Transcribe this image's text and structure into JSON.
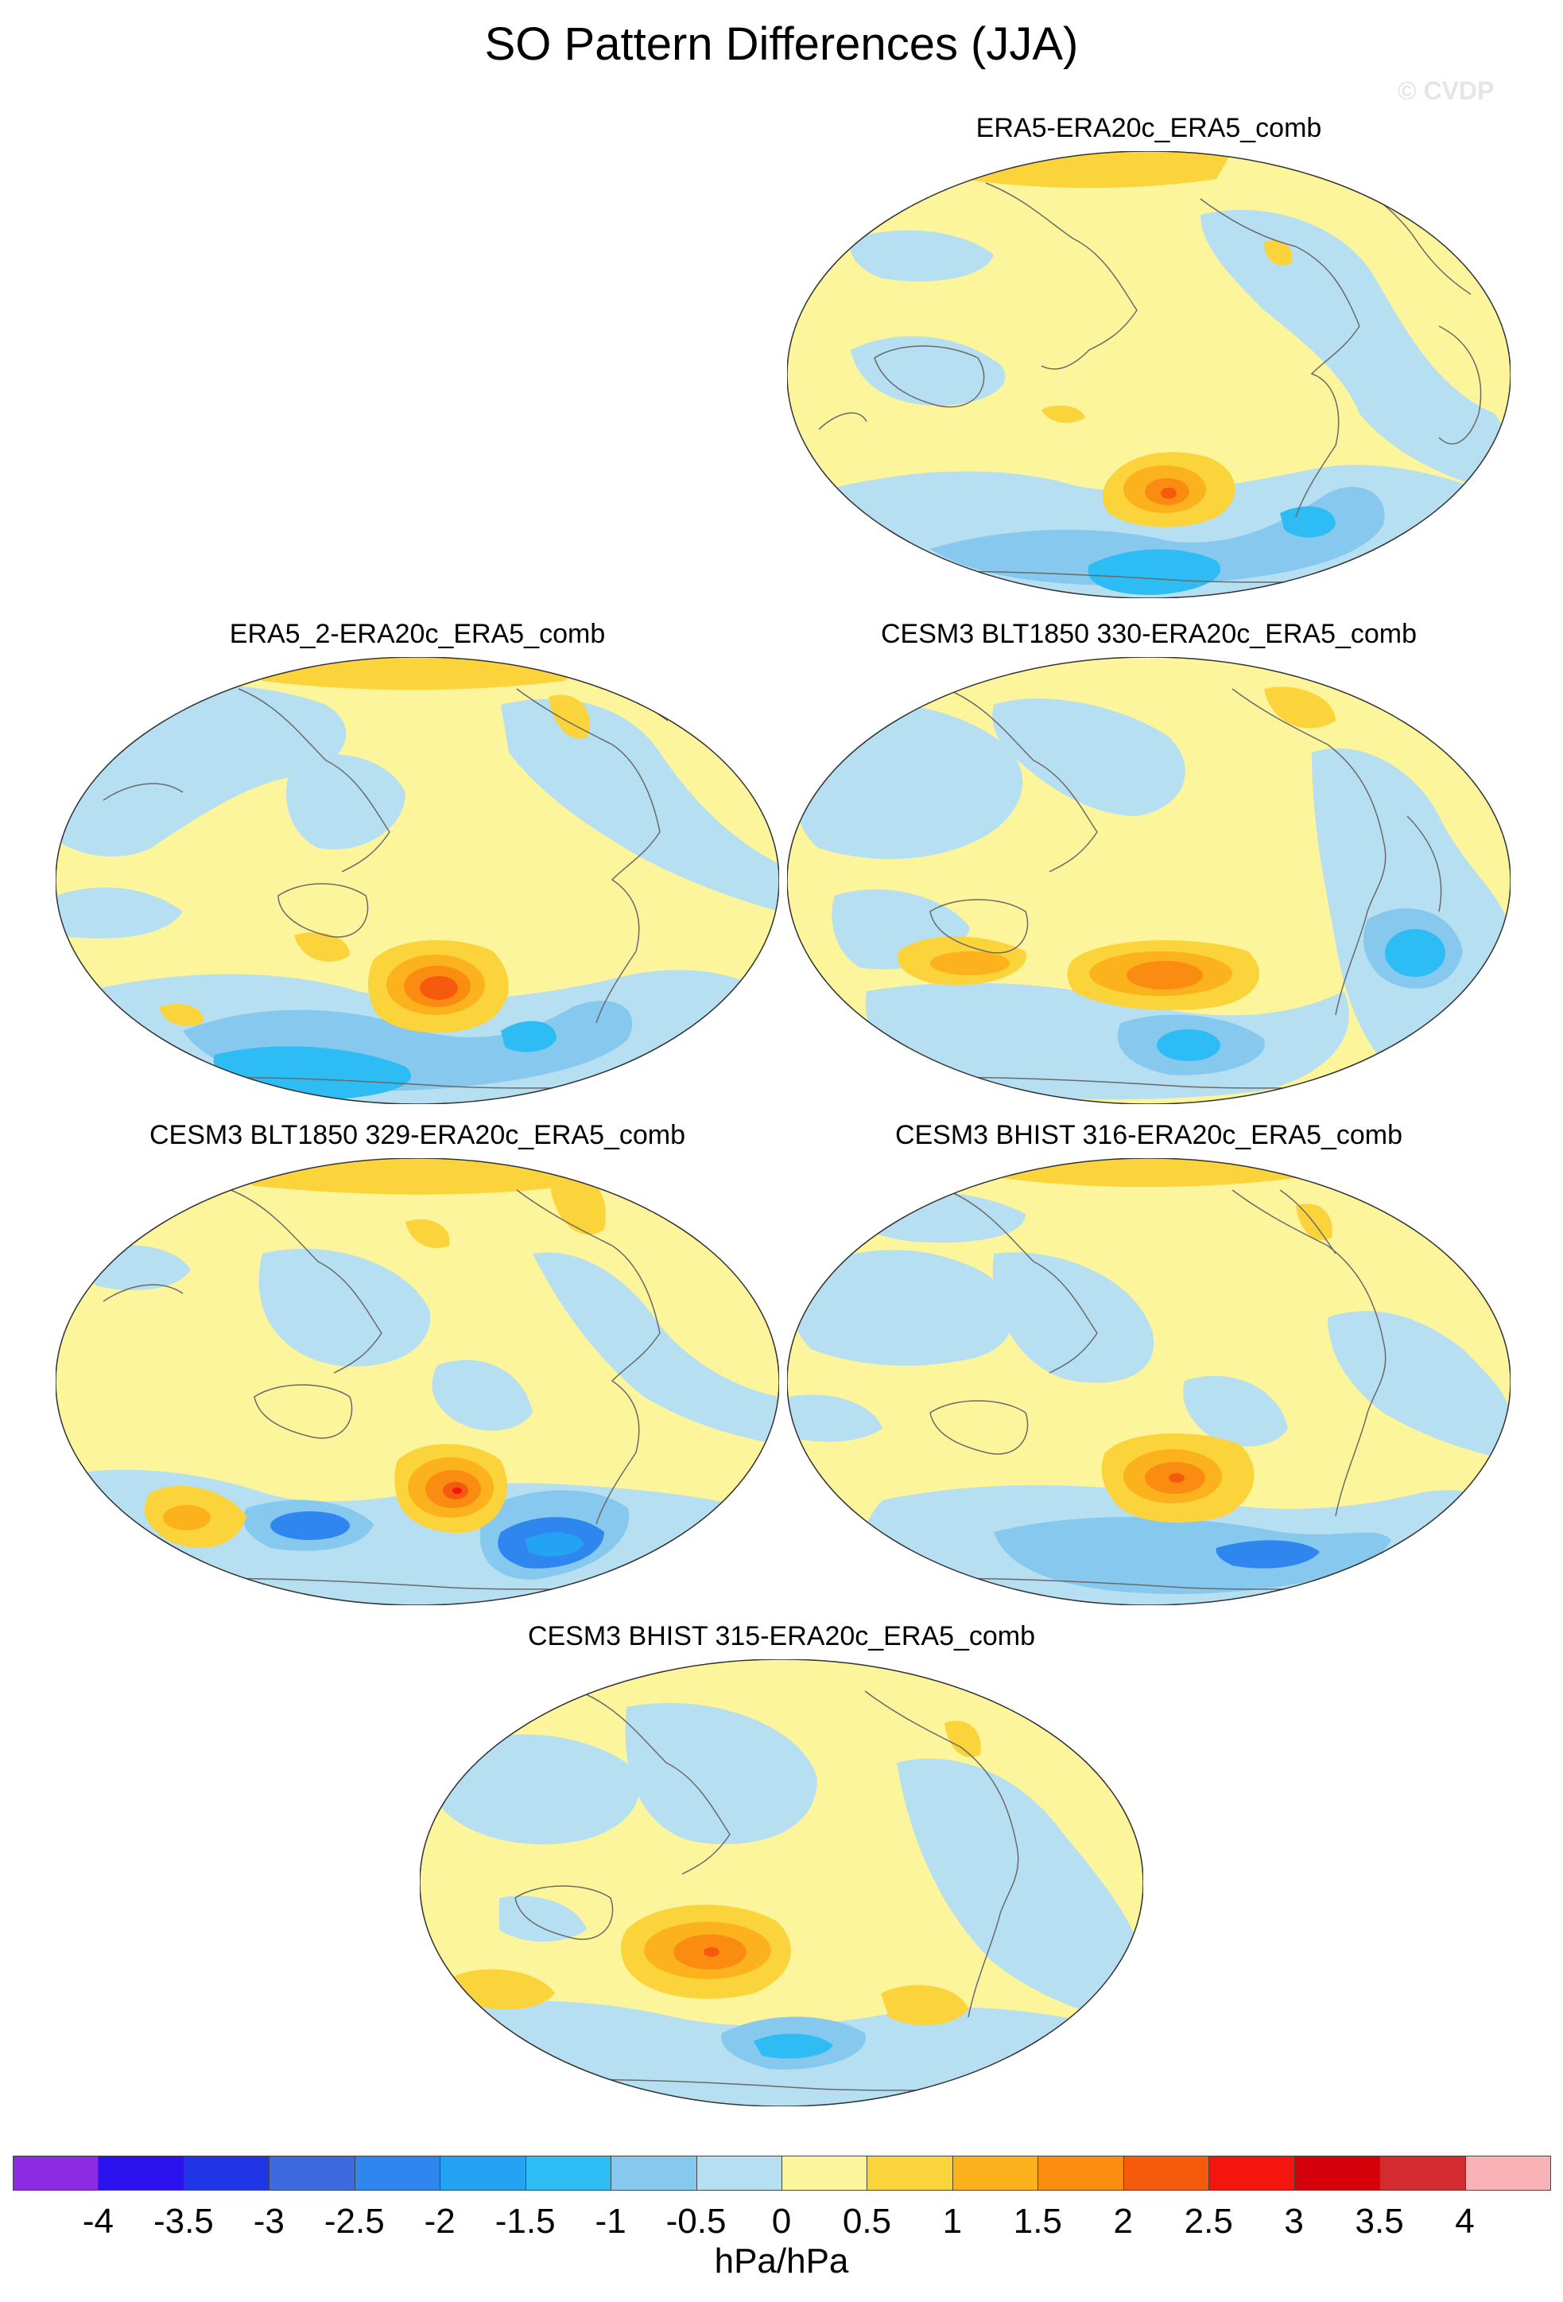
{
  "figure": {
    "title": "SO Pattern Differences (JJA)",
    "watermark": "© CVDP",
    "units": "hPa/hPa"
  },
  "colors": {
    "ocean_base": "#fdf59b",
    "coast": "#6a6a6a",
    "levels": [
      "#8b2be2",
      "#2d12f0",
      "#2035e6",
      "#3e6ae0",
      "#2f86ee",
      "#24a3f3",
      "#2ebcf5",
      "#86c8ee",
      "#b7dff2",
      "#fdf59b",
      "#fbd43c",
      "#fbb21c",
      "#fb8c12",
      "#f65a0d",
      "#f4160c",
      "#d4000a",
      "#d42b31",
      "#f9b3b6"
    ]
  },
  "colorbar": {
    "tick_labels": [
      "-4",
      "-3.5",
      "-3",
      "-2.5",
      "-2",
      "-1.5",
      "-1",
      "-0.5",
      "0",
      "0.5",
      "1",
      "1.5",
      "2",
      "2.5",
      "3",
      "3.5",
      "4"
    ]
  },
  "panels": [
    {
      "title": "ERA5-ERA20c_ERA5_comb"
    },
    {
      "title": "ERA5_2-ERA20c_ERA5_comb"
    },
    {
      "title": "CESM3 BLT1850 330-ERA20c_ERA5_comb"
    },
    {
      "title": "CESM3 BLT1850 329-ERA20c_ERA5_comb"
    },
    {
      "title": "CESM3 BHIST 316-ERA20c_ERA5_comb"
    },
    {
      "title": "CESM3 BHIST 315-ERA20c_ERA5_comb"
    }
  ]
}
